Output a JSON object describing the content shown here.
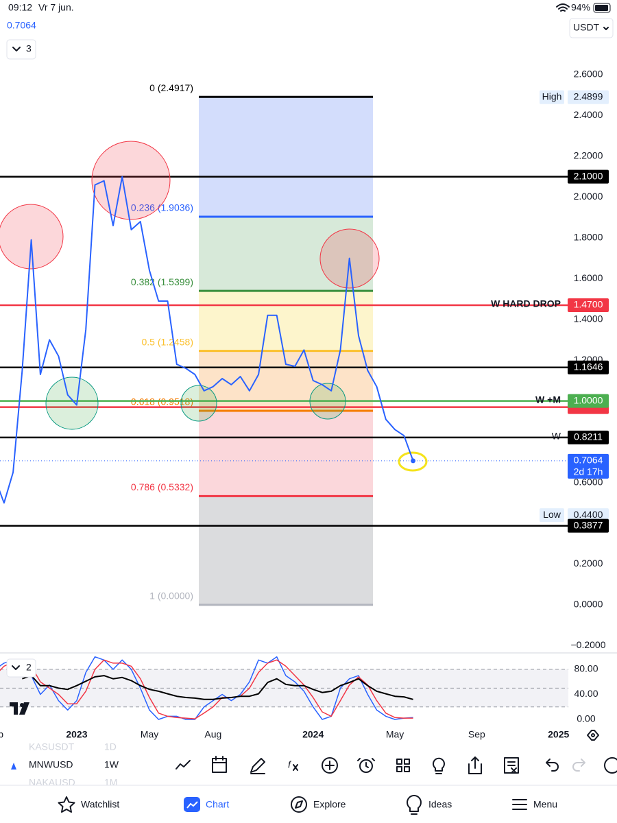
{
  "status_bar": {
    "time": "09:12",
    "date": "Vr 7 jun.",
    "battery": "94%"
  },
  "header": {
    "last_price": "0.7064",
    "currency": "USDT",
    "indicators": "3"
  },
  "chart_data": [
    {
      "type": "line",
      "color": "#2962ff",
      "categories": [
        "Sep",
        null,
        null,
        null,
        null,
        null,
        null,
        null,
        null,
        "2023",
        null,
        null,
        null,
        null,
        null,
        null,
        null,
        "May",
        null,
        null,
        null,
        null,
        null,
        null,
        "Aug",
        null,
        null,
        null,
        null,
        null,
        null,
        null,
        null,
        null,
        null,
        "2024",
        null,
        null,
        null,
        null,
        null,
        null,
        null,
        null,
        "May",
        null,
        null,
        null,
        null,
        null,
        null,
        null,
        null,
        "Sep",
        null,
        null,
        null,
        null,
        null,
        null,
        null,
        null,
        "2025",
        null
      ],
      "values": [
        0.62,
        0.5,
        0.65,
        1.15,
        1.79,
        1.13,
        1.3,
        1.22,
        1.03,
        0.98,
        1.35,
        2.06,
        2.08,
        1.86,
        2.1,
        1.84,
        1.88,
        1.64,
        1.49,
        1.49,
        1.18,
        1.16,
        1.13,
        1.05,
        1.07,
        1.11,
        1.08,
        1.12,
        1.05,
        1.13,
        1.42,
        1.42,
        1.18,
        1.17,
        1.25,
        1.1,
        1.08,
        1.05,
        1.25,
        1.7,
        1.32,
        1.15,
        1.07,
        0.91,
        0.86,
        0.83,
        0.7064,
        null,
        null,
        null,
        null,
        null,
        null,
        null,
        null,
        null,
        null,
        null,
        null,
        null,
        null,
        null,
        null,
        null
      ],
      "ylim": [
        -0.229,
        2.664
      ],
      "yticks": [
        {
          "value": 2.6,
          "label": "2.6000"
        },
        {
          "value": 2.4,
          "label": "2.4000"
        },
        {
          "value": 2.2,
          "label": "2.2000"
        },
        {
          "value": 2.0,
          "label": "2.0000"
        },
        {
          "value": 1.8,
          "label": "1.8000"
        },
        {
          "value": 1.6,
          "label": "1.6000"
        },
        {
          "value": 1.4,
          "label": "1.4000"
        },
        {
          "value": 1.2,
          "label": "1.2000"
        },
        {
          "value": 0.6,
          "label": "0.6000"
        },
        {
          "value": 0.2,
          "label": "0.2000"
        },
        {
          "value": 0,
          "label": "0.0000"
        },
        {
          "value": -0.2,
          "label": "−0.2000"
        }
      ],
      "fib_levels": [
        {
          "label": "0 (2.4917)",
          "value": 2.4917,
          "color": "#000000"
        },
        {
          "label": "0.236 (1.9036)",
          "value": 1.9036,
          "color": "#2962ff"
        },
        {
          "label": "0.382 (1.5399)",
          "value": 1.5399,
          "color": "#388e3c"
        },
        {
          "label": "0.5 (1.2458)",
          "value": 1.2458,
          "color": "#fbc02d"
        },
        {
          "label": "0.618 (0.9518)",
          "value": 0.9518,
          "color": "#f57c00"
        },
        {
          "label": "0.786 (0.5332)",
          "value": 0.5332,
          "color": "#f23645"
        },
        {
          "label": "1 (0.0000)",
          "value": 0,
          "color": "#b2b5be"
        }
      ],
      "fib_zone_colors": [
        "#d3ddfc",
        "#d7e9d9",
        "#fdf5cc",
        "#fde3c8",
        "#fbd7db",
        "#dbdcde"
      ],
      "price_lines": [
        {
          "value": 2.1,
          "label": "2.1000",
          "color": "#000000"
        },
        {
          "value": 1.47,
          "label": "1.4700",
          "color": "#f23645",
          "note": "W HARD DROP"
        },
        {
          "value": 1.1646,
          "label": "1.1646",
          "color": "#000000"
        },
        {
          "value": 0.97,
          "color": "#f23645"
        },
        {
          "value": 1.0,
          "label": "1.0000",
          "color": "#4caf50",
          "note": "W +M"
        },
        {
          "value": 0.8211,
          "label": "0.8211",
          "color": "#000000",
          "note": "W"
        },
        {
          "value": 0.7064,
          "label": "0.7064",
          "countdown": "2d 17h",
          "color": "#2962ff",
          "style": "dotted"
        },
        {
          "value": 0.3877,
          "label": "0.3877",
          "color": "#000000"
        }
      ],
      "markers": [
        {
          "label": "High",
          "value": 2.4899,
          "value_label": "2.4899"
        },
        {
          "label": "Low",
          "value": 0.44,
          "value_label": "0.4400"
        }
      ]
    },
    {
      "type": "line",
      "indicators": "2",
      "ylim": [
        -9.9,
        103
      ],
      "yticks": [
        {
          "value": 80,
          "label": "80.00"
        },
        {
          "value": 40,
          "label": "40.00"
        },
        {
          "value": 0,
          "label": "0.00"
        }
      ],
      "bands": [
        20,
        50,
        80
      ],
      "series": [
        {
          "color": "#2962ff",
          "values": [
            80,
            90,
            95,
            95,
            70,
            40,
            55,
            30,
            15,
            30,
            75,
            100,
            95,
            80,
            95,
            80,
            50,
            15,
            0,
            5,
            5,
            0,
            0,
            20,
            30,
            40,
            30,
            40,
            60,
            95,
            90,
            100,
            70,
            60,
            45,
            20,
            0,
            5,
            50,
            65,
            70,
            40,
            15,
            5,
            0,
            2,
            3,
            null,
            null,
            null,
            null,
            null,
            null,
            null,
            null,
            null,
            null,
            null,
            null,
            null,
            null,
            null,
            null,
            null
          ]
        },
        {
          "color": "#f23645",
          "values": [
            70,
            85,
            92,
            95,
            85,
            60,
            50,
            40,
            25,
            25,
            45,
            80,
            95,
            90,
            90,
            85,
            65,
            35,
            10,
            5,
            3,
            2,
            1,
            10,
            20,
            35,
            35,
            37,
            50,
            75,
            90,
            95,
            85,
            70,
            55,
            35,
            12,
            5,
            30,
            55,
            68,
            55,
            30,
            10,
            3,
            2,
            2,
            null,
            null,
            null,
            null,
            null,
            null,
            null,
            null,
            null,
            null,
            null,
            null,
            null,
            null,
            null,
            null,
            null
          ]
        },
        {
          "color": "#000000",
          "values": [
            null,
            null,
            null,
            65,
            70,
            54,
            54,
            50,
            48,
            54,
            61,
            68,
            70,
            65,
            67,
            62,
            54,
            48,
            45,
            41,
            37,
            35,
            34,
            32,
            32,
            34,
            35,
            37,
            37,
            41,
            59,
            65,
            56,
            54,
            54,
            48,
            43,
            45,
            54,
            59,
            65,
            54,
            45,
            41,
            37,
            36,
            32,
            null,
            null,
            null,
            null,
            null,
            null,
            null,
            null,
            null,
            null,
            null,
            null,
            null,
            null,
            null,
            null,
            null
          ]
        }
      ]
    }
  ],
  "toolbar": {
    "symbol": "MNWUSD",
    "interval": "1W",
    "prev_symbol": "KASUSDT",
    "prev_interval": "1D",
    "next_symbol": "NAKAUSD",
    "next_interval": "1M"
  },
  "tab_bar": {
    "tabs": [
      "Watchlist",
      "Chart",
      "Explore",
      "Ideas",
      "Menu"
    ]
  }
}
